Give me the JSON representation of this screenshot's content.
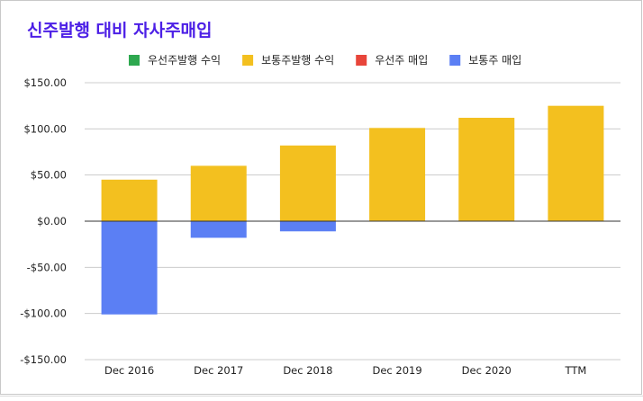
{
  "chart_data": {
    "type": "bar",
    "stacked": true,
    "title": "신주발행 대비 자사주매입",
    "title_color": "#4c1fe6",
    "categories": [
      "Dec 2016",
      "Dec 2017",
      "Dec 2018",
      "Dec 2019",
      "Dec 2020",
      "TTM"
    ],
    "series": [
      {
        "name": "우선주발행 수익",
        "color": "#2ea84f",
        "values": [
          0,
          0,
          0,
          0,
          0,
          0
        ]
      },
      {
        "name": "보통주발행 수익",
        "color": "#f3c01f",
        "values": [
          45,
          60,
          82,
          101,
          112,
          125
        ]
      },
      {
        "name": "우선주 매입",
        "color": "#e8453a",
        "values": [
          0,
          0,
          0,
          0,
          0,
          0
        ]
      },
      {
        "name": "보통주 매입",
        "color": "#5b7ff4",
        "values": [
          -101,
          -18,
          -11,
          0,
          0,
          0
        ]
      }
    ],
    "yticks": [
      "$150.00",
      "$100.00",
      "$50.00",
      "$0.00",
      "-$50.00",
      "-$100.00",
      "-$150.00"
    ],
    "ytick_values": [
      150,
      100,
      50,
      0,
      -50,
      -100,
      -150
    ],
    "ylim": [
      -150,
      150
    ],
    "grid": true,
    "legend_position": "top"
  }
}
